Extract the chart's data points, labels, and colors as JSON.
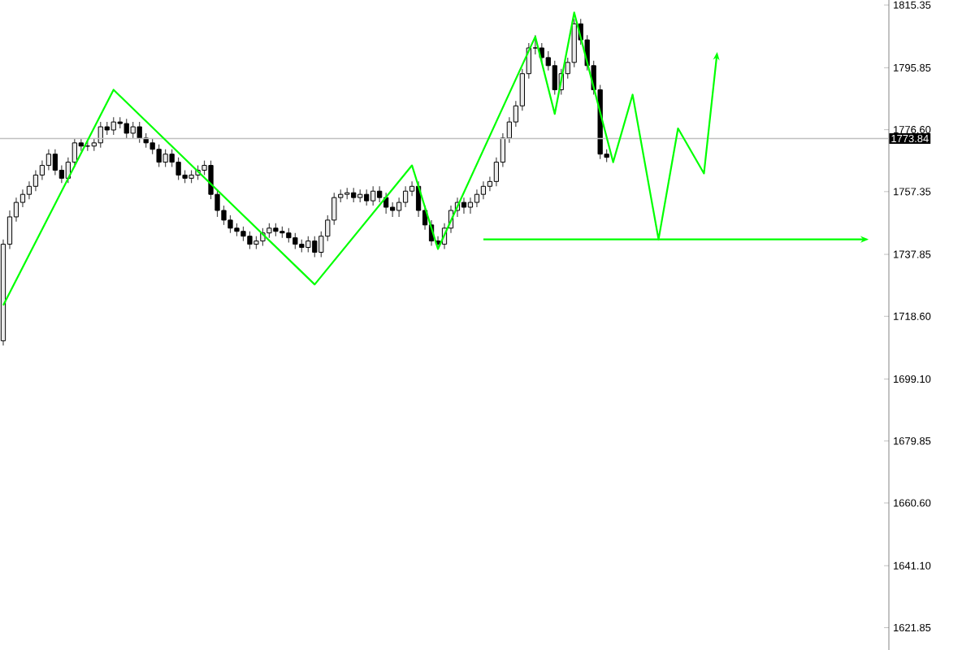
{
  "chart_data": {
    "type": "candlestick",
    "categories": [
      null,
      null,
      null,
      null,
      null,
      null,
      null,
      null,
      null,
      null,
      null,
      null,
      null,
      null,
      null,
      null,
      null,
      null,
      null,
      null,
      null,
      null,
      null,
      null,
      null,
      null,
      null,
      null,
      null,
      null,
      null,
      null,
      null,
      null,
      null,
      null,
      null,
      null,
      null,
      null,
      null,
      null,
      null,
      null,
      null,
      null,
      null,
      null,
      null,
      null,
      null,
      null,
      null,
      null,
      null,
      null,
      null,
      null,
      null,
      null,
      null,
      null,
      null,
      null,
      null,
      null,
      null,
      null,
      null,
      null,
      null,
      null,
      null,
      null,
      null,
      null,
      null,
      null,
      null,
      null,
      null,
      null,
      null,
      null,
      null,
      null,
      null,
      null,
      null,
      null,
      null,
      null,
      null,
      null,
      null,
      null,
      null,
      null,
      null,
      null,
      null,
      null,
      null,
      null,
      null,
      null,
      null,
      null,
      null,
      null,
      null,
      null,
      null,
      null,
      null,
      null,
      null,
      null,
      null,
      null,
      null,
      null,
      null,
      null,
      null,
      null,
      null,
      null,
      null,
      null,
      null,
      null,
      null,
      null,
      null,
      null,
      null
    ],
    "ohlc": [
      [
        1711,
        1742.5,
        1709.5,
        1741
      ],
      [
        1741,
        1751.5,
        1739.5,
        1749.5
      ],
      [
        1749.5,
        1755.5,
        1748,
        1754
      ],
      [
        1754,
        1758,
        1752.5,
        1756.5
      ],
      [
        1756.5,
        1760.5,
        1755,
        1759
      ],
      [
        1759,
        1764,
        1757.5,
        1762.5
      ],
      [
        1762.5,
        1767,
        1761,
        1765.5
      ],
      [
        1765.5,
        1770.5,
        1764,
        1769
      ],
      [
        1769,
        1770.5,
        1762.5,
        1764
      ],
      [
        1764,
        1765.5,
        1760,
        1761.5
      ],
      [
        1761.5,
        1768,
        1760,
        1766.5
      ],
      [
        1766.5,
        1774,
        1765,
        1772.5
      ],
      [
        1772.5,
        1774,
        1770,
        1771.5
      ],
      [
        1771.5,
        1773,
        1770,
        1771.5
      ],
      [
        1771.5,
        1774,
        1770,
        1772.5
      ],
      [
        1772.5,
        1779,
        1771,
        1777.5
      ],
      [
        1777.5,
        1779,
        1775,
        1776.5
      ],
      [
        1776.5,
        1780.5,
        1775,
        1779
      ],
      [
        1779,
        1780.5,
        1777,
        1778.5
      ],
      [
        1778.5,
        1780,
        1774,
        1775.5
      ],
      [
        1775.5,
        1779,
        1774,
        1777.5
      ],
      [
        1777.5,
        1779,
        1772.5,
        1774
      ],
      [
        1774,
        1775.5,
        1771,
        1772.5
      ],
      [
        1772.5,
        1774,
        1769,
        1770.5
      ],
      [
        1770.5,
        1772,
        1765,
        1766.5
      ],
      [
        1766.5,
        1770.5,
        1765,
        1769
      ],
      [
        1769,
        1770.5,
        1765,
        1766.5
      ],
      [
        1766.5,
        1768,
        1761,
        1762.5
      ],
      [
        1762.5,
        1764,
        1760,
        1761.5
      ],
      [
        1761.5,
        1764,
        1760,
        1762.5
      ],
      [
        1762.5,
        1765.5,
        1761,
        1764
      ],
      [
        1764,
        1767,
        1762.5,
        1765.5
      ],
      [
        1765.5,
        1767,
        1755,
        1756.5
      ],
      [
        1756.5,
        1758,
        1749.5,
        1751.5
      ],
      [
        1751.5,
        1753,
        1747,
        1748.5
      ],
      [
        1748.5,
        1750,
        1744.5,
        1746
      ],
      [
        1746,
        1747.5,
        1743.5,
        1745
      ],
      [
        1745,
        1746.5,
        1742,
        1743.5
      ],
      [
        1743.5,
        1745,
        1739.5,
        1741
      ],
      [
        1741,
        1743.5,
        1739.5,
        1742
      ],
      [
        1742,
        1746,
        1740.5,
        1744.5
      ],
      [
        1744.5,
        1747.5,
        1743,
        1746
      ],
      [
        1746,
        1747.5,
        1743.5,
        1745
      ],
      [
        1745,
        1746.5,
        1743,
        1744.5
      ],
      [
        1744.5,
        1746,
        1741.5,
        1743
      ],
      [
        1743,
        1744.5,
        1739.5,
        1741
      ],
      [
        1741,
        1742.5,
        1738.5,
        1740
      ],
      [
        1740,
        1743.5,
        1738.5,
        1742
      ],
      [
        1742,
        1743.5,
        1737,
        1738.5
      ],
      [
        1738.5,
        1745,
        1737,
        1743.5
      ],
      [
        1743.5,
        1750,
        1742,
        1748.5
      ],
      [
        1748.5,
        1757,
        1747,
        1755.5
      ],
      [
        1755.5,
        1758,
        1754,
        1756.5
      ],
      [
        1756.5,
        1758.5,
        1755,
        1757
      ],
      [
        1757,
        1758.5,
        1754,
        1755.5
      ],
      [
        1755.5,
        1758,
        1754,
        1756.5
      ],
      [
        1756.5,
        1758,
        1753,
        1754.5
      ],
      [
        1754.5,
        1759,
        1753,
        1757.5
      ],
      [
        1757.5,
        1759,
        1754,
        1755.5
      ],
      [
        1755.5,
        1757,
        1750.5,
        1752.5
      ],
      [
        1752.5,
        1754,
        1749.5,
        1751.5
      ],
      [
        1751.5,
        1755.5,
        1749.5,
        1754
      ],
      [
        1754,
        1759,
        1752.5,
        1757.5
      ],
      [
        1757.5,
        1760.5,
        1756,
        1759
      ],
      [
        1759,
        1760.5,
        1749.5,
        1751.5
      ],
      [
        1751.5,
        1753,
        1745.5,
        1747
      ],
      [
        1747,
        1748.5,
        1740.5,
        1742
      ],
      [
        1742,
        1743.5,
        1739.5,
        1741
      ],
      [
        1741,
        1747.5,
        1739.5,
        1746
      ],
      [
        1746,
        1753,
        1744.5,
        1751.5
      ],
      [
        1751.5,
        1755.5,
        1749.5,
        1754
      ],
      [
        1754,
        1755.5,
        1750.5,
        1752.5
      ],
      [
        1752.5,
        1755.5,
        1750.5,
        1754
      ],
      [
        1754,
        1758,
        1752.5,
        1756.5
      ],
      [
        1756.5,
        1760.5,
        1755,
        1759
      ],
      [
        1759,
        1762,
        1757.5,
        1760.5
      ],
      [
        1760.5,
        1768,
        1759,
        1766.5
      ],
      [
        1766.5,
        1775.5,
        1765,
        1774
      ],
      [
        1774,
        1780.5,
        1772.5,
        1779
      ],
      [
        1779,
        1785.5,
        1777.5,
        1784
      ],
      [
        1784,
        1795.5,
        1782.5,
        1794
      ],
      [
        1794,
        1803.5,
        1792.5,
        1802
      ],
      [
        1802,
        1806,
        1800,
        1802
      ],
      [
        1802,
        1803.5,
        1797.5,
        1799
      ],
      [
        1799,
        1801,
        1795,
        1796.5
      ],
      [
        1796.5,
        1798,
        1787.5,
        1789
      ],
      [
        1789,
        1795.5,
        1787.5,
        1794
      ],
      [
        1794,
        1799,
        1792.5,
        1797.5
      ],
      [
        1797.5,
        1811,
        1796,
        1809.5
      ],
      [
        1809.5,
        1811,
        1803,
        1804.5
      ],
      [
        1804.5,
        1806,
        1795,
        1796.5
      ],
      [
        1796.5,
        1798,
        1787.5,
        1789
      ],
      [
        1789,
        1790.5,
        1767.5,
        1769
      ],
      [
        1769,
        1770.5,
        1766.5,
        1768
      ],
      null,
      null,
      null,
      null,
      null,
      null,
      null,
      null,
      null,
      null,
      null,
      null,
      null,
      null,
      null,
      null,
      null,
      null,
      null,
      null,
      null,
      null,
      null,
      null,
      null,
      null,
      null,
      null,
      null,
      null,
      null,
      null,
      null,
      null,
      null,
      null,
      null,
      null,
      null,
      null,
      null,
      null,
      null
    ],
    "ylim": [
      1614.9,
      1816.9
    ],
    "yticks": [
      {
        "value": 1815.35,
        "label": "1815.35"
      },
      {
        "value": 1795.85,
        "label": "1795.85"
      },
      {
        "value": 1776.6,
        "label": "1776.60"
      },
      {
        "value": 1757.35,
        "label": "1757.35"
      },
      {
        "value": 1737.85,
        "label": "1737.85"
      },
      {
        "value": 1718.6,
        "label": "1718.60"
      },
      {
        "value": 1699.1,
        "label": "1699.10"
      },
      {
        "value": 1679.85,
        "label": "1679.85"
      },
      {
        "value": 1660.6,
        "label": "1660.60"
      },
      {
        "value": 1641.1,
        "label": "1641.10"
      },
      {
        "value": 1621.85,
        "label": "1621.85"
      }
    ],
    "tick_labels": "y",
    "ref_lines": [
      {
        "axis": "y",
        "value": 1773.84,
        "label": "1773.84",
        "color": "#c0c0c0"
      }
    ],
    "series": [
      {
        "type": "line",
        "color": "#00ff00",
        "values": [
          1722,
          null,
          null,
          null,
          null,
          null,
          null,
          null,
          null,
          null,
          null,
          null,
          null,
          null,
          null,
          null,
          null,
          1789,
          null,
          null,
          null,
          null,
          null,
          null,
          null,
          null,
          null,
          null,
          null,
          null,
          null,
          null,
          null,
          null,
          null,
          null,
          null,
          null,
          null,
          null,
          null,
          null,
          null,
          null,
          null,
          null,
          null,
          null,
          1728.5,
          null,
          null,
          null,
          null,
          null,
          null,
          null,
          null,
          null,
          null,
          null,
          null,
          null,
          null,
          1765.5,
          null,
          null,
          null,
          1739.5,
          null,
          null,
          null,
          null,
          null,
          null,
          null,
          null,
          null,
          null,
          null,
          null,
          null,
          null,
          1805.5,
          null,
          null,
          1781.5,
          null,
          null,
          1813,
          null,
          null,
          null,
          null,
          null,
          1766.5,
          null,
          null,
          1787.5,
          null,
          null,
          null,
          1742.5,
          null,
          null,
          1777,
          null,
          null,
          null,
          1763,
          null,
          1800,
          null,
          null,
          null,
          null,
          null,
          null,
          null,
          null,
          null,
          null,
          null,
          null,
          null,
          null,
          null,
          null,
          null,
          null,
          null,
          null,
          null,
          null,
          null,
          null,
          null,
          null
        ]
      },
      {
        "type": "line",
        "color": "#00ff00",
        "values": [
          null,
          null,
          null,
          null,
          null,
          null,
          null,
          null,
          null,
          null,
          null,
          null,
          null,
          null,
          null,
          null,
          null,
          null,
          null,
          null,
          null,
          null,
          null,
          null,
          null,
          null,
          null,
          null,
          null,
          null,
          null,
          null,
          null,
          null,
          null,
          null,
          null,
          null,
          null,
          null,
          null,
          null,
          null,
          null,
          null,
          null,
          null,
          null,
          null,
          null,
          null,
          null,
          null,
          null,
          null,
          null,
          null,
          null,
          null,
          null,
          null,
          null,
          null,
          null,
          null,
          null,
          null,
          null,
          null,
          null,
          null,
          null,
          null,
          null,
          1742.5,
          null,
          null,
          null,
          null,
          null,
          null,
          null,
          null,
          null,
          null,
          null,
          null,
          null,
          null,
          null,
          null,
          null,
          null,
          null,
          null,
          null,
          null,
          null,
          null,
          null,
          null,
          null,
          null,
          null,
          null,
          null,
          null,
          null,
          null,
          null,
          null,
          null,
          null,
          null,
          null,
          null,
          null,
          null,
          null,
          null,
          null,
          null,
          null,
          null,
          null,
          null,
          null,
          null,
          null,
          null,
          null,
          null,
          null,
          1742.5,
          null,
          null,
          null
        ]
      }
    ]
  }
}
